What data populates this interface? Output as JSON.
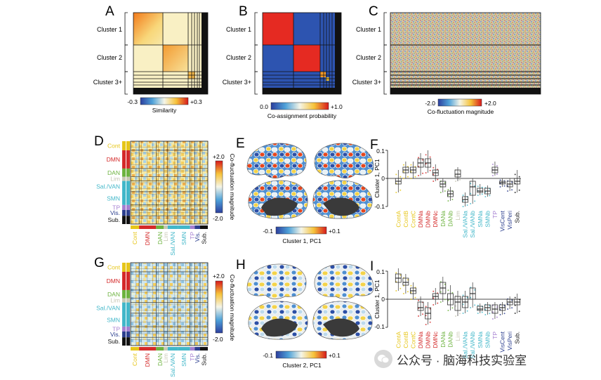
{
  "panels": {
    "A": {
      "letter": "A",
      "clusters": [
        "Cluster 1",
        "Cluster 2",
        "Cluster 3+"
      ],
      "cbar_min": "-0.3",
      "cbar_max": "+0.3",
      "cbar_label": "Similarity"
    },
    "B": {
      "letter": "B",
      "clusters": [
        "Cluster 1",
        "Cluster 2",
        "Cluster 3+"
      ],
      "cbar_min": "0.0",
      "cbar_max": "+1.0",
      "cbar_label": "Co-assignment probability"
    },
    "C": {
      "letter": "C",
      "clusters": [
        "Cluster 1",
        "Cluster 2",
        "Cluster 3+"
      ],
      "cbar_min": "-2.0",
      "cbar_max": "+2.0",
      "cbar_label": "Co-fluctuation magnitude"
    },
    "D": {
      "letter": "D",
      "cbar_max": "+2.0",
      "cbar_min": "-2.0",
      "cbar_label": "Co-fluctuation magnitude"
    },
    "E": {
      "letter": "E",
      "cbar_min": "-0.1",
      "cbar_max": "+0.1",
      "cbar_label": "Cluster 1, PC1"
    },
    "F": {
      "letter": "F",
      "ylabel": "Cluster 1, PC1",
      "yticks": [
        "0.1",
        "0",
        "-0.1"
      ]
    },
    "G": {
      "letter": "G",
      "cbar_max": "+2.0",
      "cbar_min": "-2.0",
      "cbar_label": "Co-fluctuation magnitude"
    },
    "H": {
      "letter": "H",
      "cbar_min": "-0.1",
      "cbar_max": "+0.1",
      "cbar_label": "Cluster 2, PC1"
    },
    "I": {
      "letter": "I",
      "ylabel": "Cluster 1, PC1",
      "yticks": [
        "0.1",
        "0",
        "-0.1"
      ]
    }
  },
  "networks": [
    {
      "label": "Cont",
      "color": "#e6c619"
    },
    {
      "label": "DMN",
      "color": "#d42a2a"
    },
    {
      "label": "DAN",
      "color": "#6db33f"
    },
    {
      "label": "Lim",
      "color": "#c8c8b4"
    },
    {
      "label": "Sal./VAN",
      "color": "#42b7c9"
    },
    {
      "label": "SMN",
      "color": "#42b7c9"
    },
    {
      "label": "TP",
      "color": "#a57fd1"
    },
    {
      "label": "Vis.",
      "color": "#2c3f8f"
    },
    {
      "label": "Sub.",
      "color": "#111111"
    }
  ],
  "box_categories": [
    {
      "label": "ContA",
      "color": "#e6c619"
    },
    {
      "label": "ContB",
      "color": "#e6c619"
    },
    {
      "label": "ContC",
      "color": "#e6c619"
    },
    {
      "label": "DMNa",
      "color": "#d42a2a"
    },
    {
      "label": "DMNb",
      "color": "#d42a2a"
    },
    {
      "label": "DMNc",
      "color": "#d42a2a"
    },
    {
      "label": "DANa",
      "color": "#6db33f"
    },
    {
      "label": "DANb",
      "color": "#6db33f"
    },
    {
      "label": "Lim",
      "color": "#c8c8b4"
    },
    {
      "label": "Sal./VANa",
      "color": "#42b7c9"
    },
    {
      "label": "Sal./VANb",
      "color": "#42b7c9"
    },
    {
      "label": "SMNa",
      "color": "#42b7c9"
    },
    {
      "label": "SMNb",
      "color": "#42b7c9"
    },
    {
      "label": "TP",
      "color": "#a57fd1"
    },
    {
      "label": "VisCent",
      "color": "#2c3f8f"
    },
    {
      "label": "VisPeri",
      "color": "#2c3f8f"
    },
    {
      "label": "Sub.",
      "color": "#111111"
    }
  ],
  "boxes_F": [
    {
      "q1": -0.02,
      "med": -0.01,
      "q3": 0.0,
      "lo": -0.05,
      "hi": 0.03
    },
    {
      "q1": 0.02,
      "med": 0.03,
      "q3": 0.04,
      "lo": 0.0,
      "hi": 0.06
    },
    {
      "q1": 0.02,
      "med": 0.03,
      "q3": 0.04,
      "lo": 0.0,
      "hi": 0.06
    },
    {
      "q1": 0.04,
      "med": 0.055,
      "q3": 0.07,
      "lo": 0.01,
      "hi": 0.09
    },
    {
      "q1": 0.04,
      "med": 0.055,
      "q3": 0.07,
      "lo": 0.02,
      "hi": 0.1
    },
    {
      "q1": 0.01,
      "med": 0.02,
      "q3": 0.03,
      "lo": -0.01,
      "hi": 0.05
    },
    {
      "q1": -0.03,
      "med": -0.02,
      "q3": -0.01,
      "lo": -0.05,
      "hi": 0.0
    },
    {
      "q1": -0.065,
      "med": -0.055,
      "q3": -0.045,
      "lo": -0.08,
      "hi": -0.03
    },
    {
      "q1": 0.005,
      "med": 0.015,
      "q3": 0.03,
      "lo": -0.01,
      "hi": 0.04
    },
    {
      "q1": -0.085,
      "med": -0.075,
      "q3": -0.065,
      "lo": -0.1,
      "hi": -0.05
    },
    {
      "q1": -0.06,
      "med": -0.03,
      "q3": -0.01,
      "lo": -0.09,
      "hi": 0.0
    },
    {
      "q1": -0.05,
      "med": -0.045,
      "q3": -0.035,
      "lo": -0.06,
      "hi": -0.02
    },
    {
      "q1": -0.055,
      "med": -0.045,
      "q3": -0.035,
      "lo": -0.065,
      "hi": -0.025
    },
    {
      "q1": 0.02,
      "med": 0.03,
      "q3": 0.04,
      "lo": 0.01,
      "hi": 0.06
    },
    {
      "q1": -0.02,
      "med": -0.015,
      "q3": -0.01,
      "lo": -0.03,
      "hi": 0.0
    },
    {
      "q1": -0.03,
      "med": -0.02,
      "q3": -0.01,
      "lo": -0.045,
      "hi": 0.0
    },
    {
      "q1": -0.02,
      "med": -0.01,
      "q3": 0.0,
      "lo": -0.05,
      "hi": 0.03
    }
  ],
  "boxes_I": [
    {
      "q1": 0.06,
      "med": 0.075,
      "q3": 0.09,
      "lo": 0.03,
      "hi": 0.11
    },
    {
      "q1": 0.05,
      "med": 0.06,
      "q3": 0.075,
      "lo": 0.02,
      "hi": 0.09
    },
    {
      "q1": 0.02,
      "med": 0.03,
      "q3": 0.04,
      "lo": 0.0,
      "hi": 0.06
    },
    {
      "q1": -0.04,
      "med": -0.03,
      "q3": -0.01,
      "lo": -0.06,
      "hi": 0.01
    },
    {
      "q1": -0.07,
      "med": -0.05,
      "q3": -0.03,
      "lo": -0.09,
      "hi": -0.01
    },
    {
      "q1": 0.0,
      "med": 0.01,
      "q3": 0.02,
      "lo": -0.02,
      "hi": 0.04
    },
    {
      "q1": 0.02,
      "med": 0.04,
      "q3": 0.06,
      "lo": -0.01,
      "hi": 0.08
    },
    {
      "q1": -0.02,
      "med": 0.0,
      "q3": 0.02,
      "lo": -0.04,
      "hi": 0.05
    },
    {
      "q1": -0.04,
      "med": -0.01,
      "q3": 0.01,
      "lo": -0.06,
      "hi": 0.03
    },
    {
      "q1": -0.03,
      "med": -0.01,
      "q3": 0.01,
      "lo": -0.05,
      "hi": 0.03
    },
    {
      "q1": 0.0,
      "med": 0.02,
      "q3": 0.04,
      "lo": -0.03,
      "hi": 0.06
    },
    {
      "q1": -0.04,
      "med": -0.035,
      "q3": -0.025,
      "lo": -0.05,
      "hi": -0.015
    },
    {
      "q1": -0.04,
      "med": -0.03,
      "q3": -0.02,
      "lo": -0.055,
      "hi": -0.01
    },
    {
      "q1": -0.05,
      "med": -0.035,
      "q3": -0.02,
      "lo": -0.07,
      "hi": -0.01
    },
    {
      "q1": -0.04,
      "med": -0.03,
      "q3": -0.02,
      "lo": -0.055,
      "hi": -0.01
    },
    {
      "q1": -0.02,
      "med": -0.01,
      "q3": 0.0,
      "lo": -0.035,
      "hi": 0.01
    },
    {
      "q1": -0.02,
      "med": -0.01,
      "q3": 0.0,
      "lo": -0.05,
      "hi": 0.02
    }
  ],
  "watermark": {
    "text": "公众号 · 脑海科技实验室",
    "icon": "wechat-icon"
  }
}
